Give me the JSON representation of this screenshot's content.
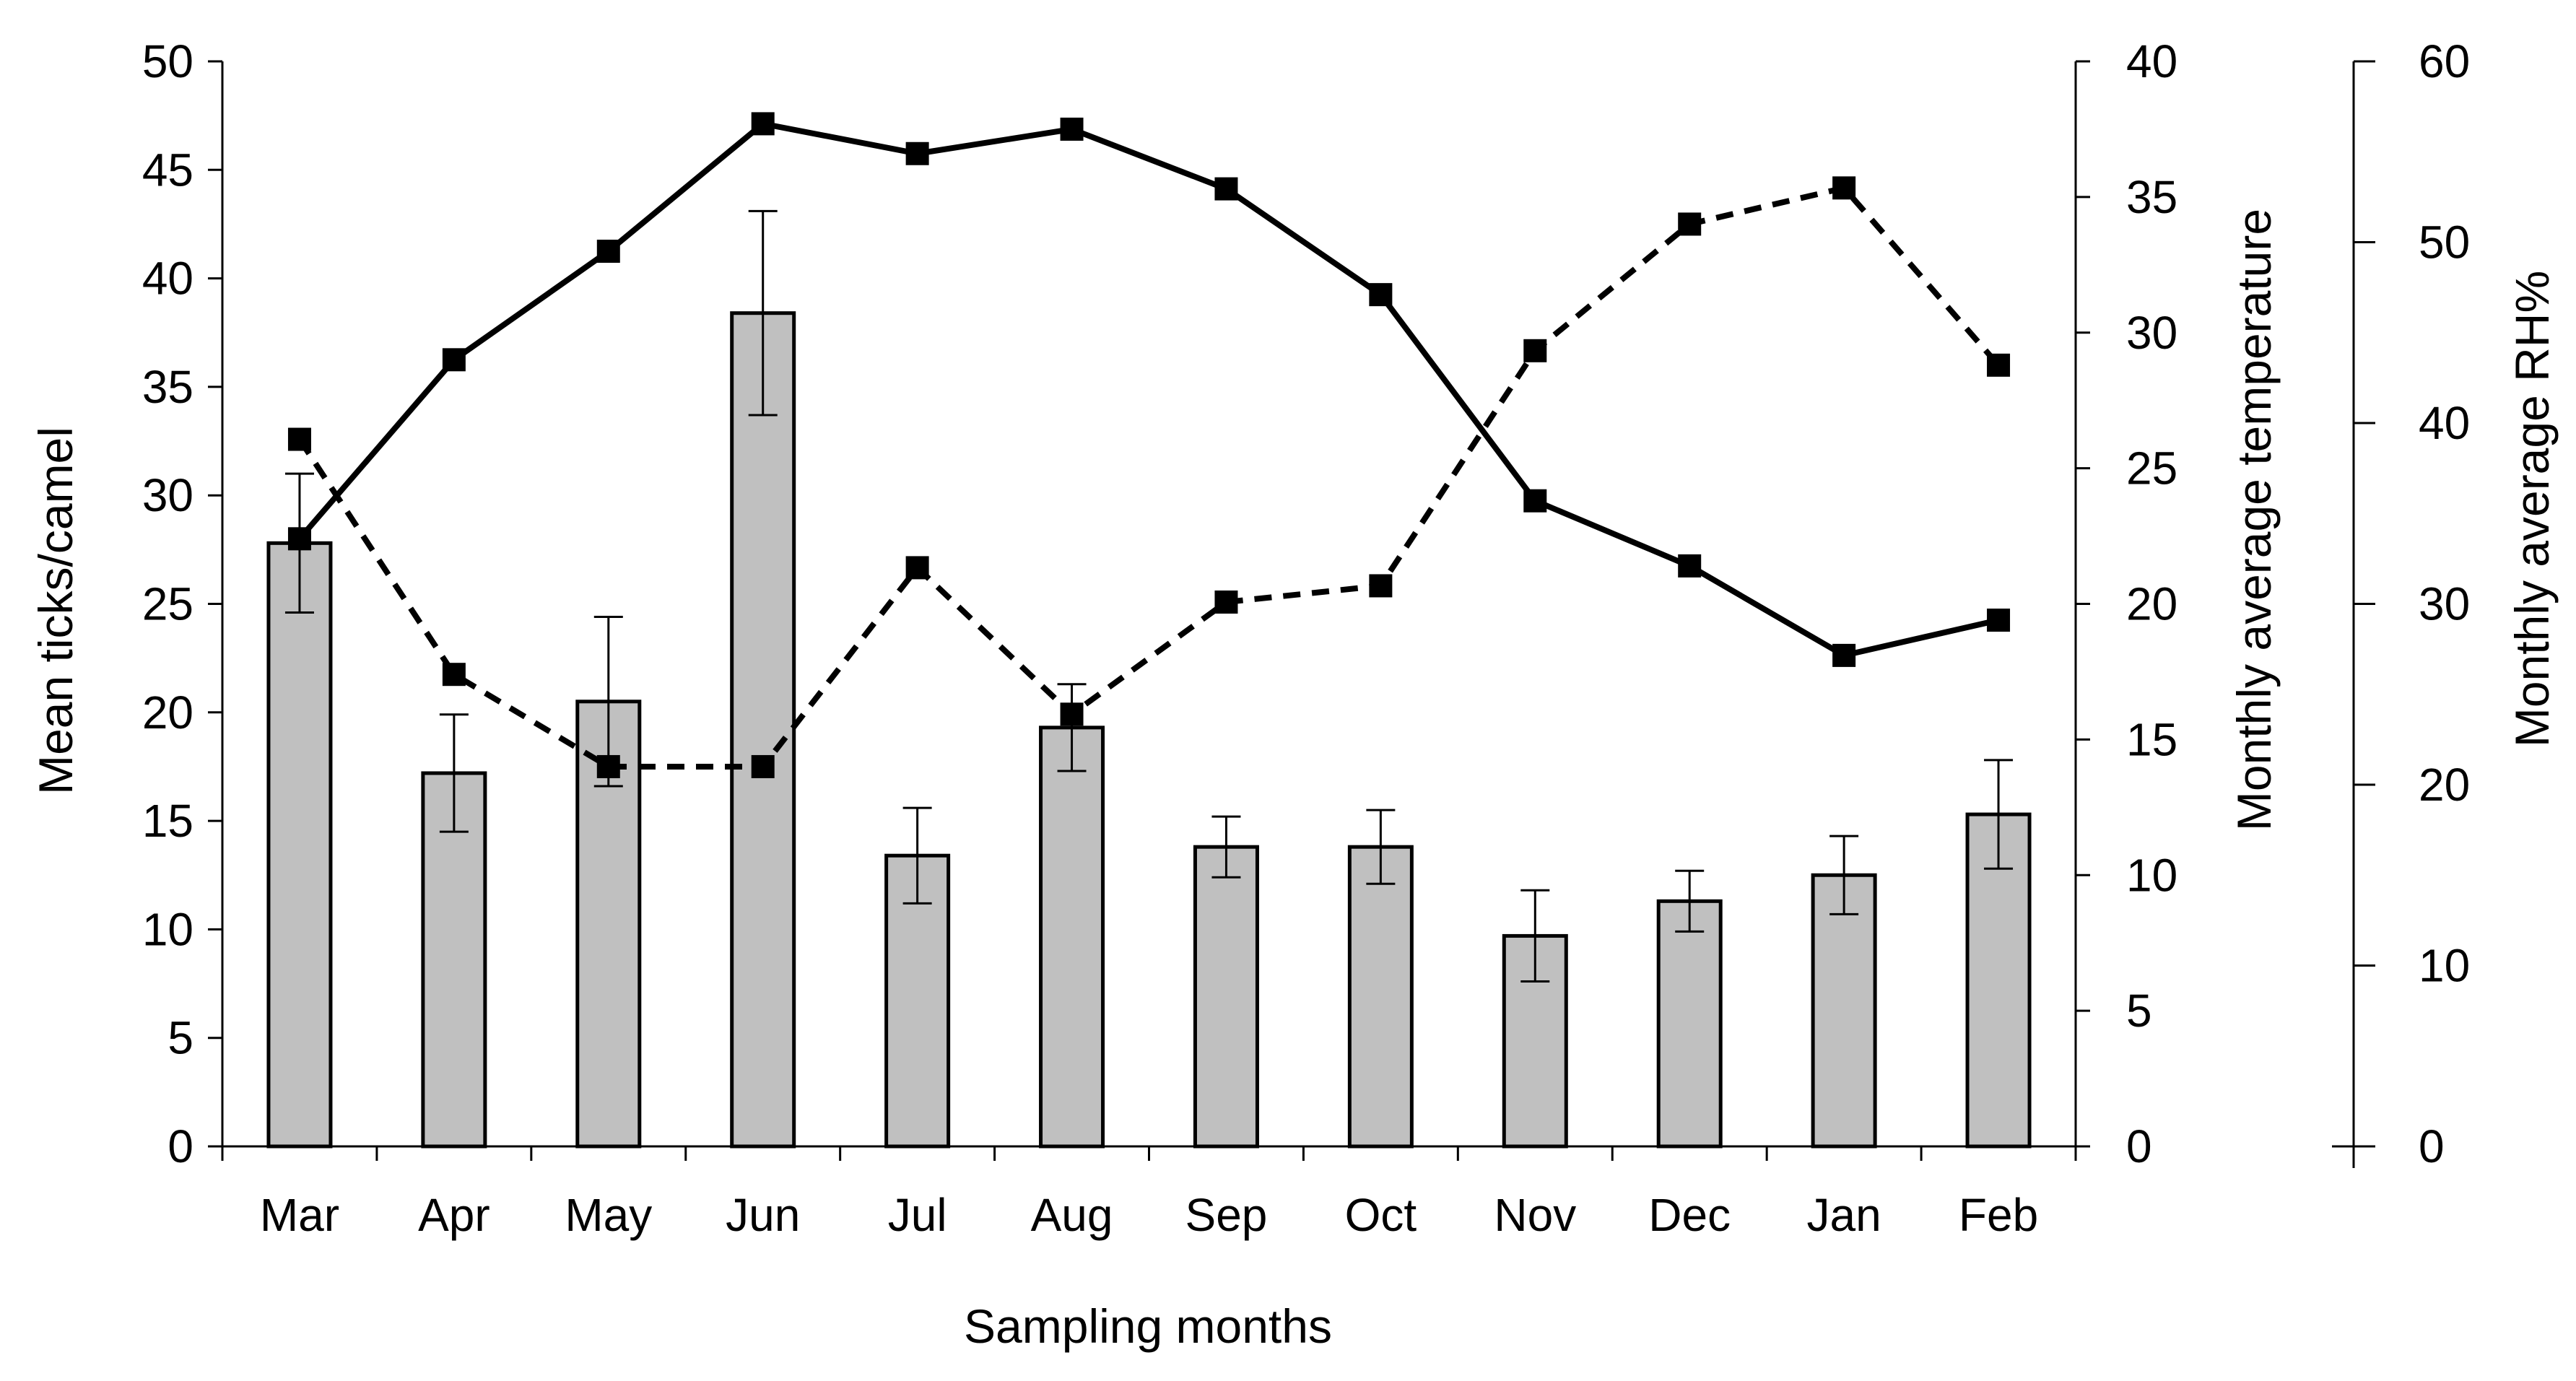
{
  "chart_data": {
    "type": "bar",
    "categories": [
      "Mar",
      "Apr",
      "May",
      "Jun",
      "Jul",
      "Aug",
      "Sep",
      "Oct",
      "Nov",
      "Dec",
      "Jan",
      "Feb"
    ],
    "xlabel": "Sampling months",
    "axes": {
      "left": {
        "label": "Mean ticks/camel",
        "ylim": [
          0,
          50
        ],
        "ticks": [
          0,
          5,
          10,
          15,
          20,
          25,
          30,
          35,
          40,
          45,
          50
        ]
      },
      "right1": {
        "label": "Monthly average temperature",
        "ylim": [
          0,
          40
        ],
        "ticks": [
          0,
          5,
          10,
          15,
          20,
          25,
          30,
          35,
          40
        ]
      },
      "right2": {
        "label": "Monthly average RH%",
        "ylim": [
          0,
          60
        ],
        "ticks": [
          0,
          10,
          20,
          30,
          40,
          50,
          60
        ]
      }
    },
    "series": [
      {
        "kind": "bar",
        "axis": "left",
        "color": "#c0c0c0",
        "values": [
          27.8,
          17.2,
          20.5,
          38.4,
          13.4,
          19.3,
          13.8,
          13.8,
          9.7,
          11.3,
          12.5,
          15.3
        ],
        "error": [
          3.2,
          2.7,
          3.9,
          4.7,
          2.2,
          2.0,
          1.4,
          1.7,
          2.1,
          1.4,
          1.8,
          2.5
        ]
      },
      {
        "kind": "line",
        "axis": "right1",
        "style": "solid",
        "color": "#000000",
        "values": [
          22.4,
          29.0,
          33.0,
          37.7,
          36.6,
          37.5,
          35.3,
          31.4,
          23.8,
          21.4,
          18.1,
          19.4
        ]
      },
      {
        "kind": "line",
        "axis": "right2",
        "style": "dashed",
        "color": "#000000",
        "values": [
          39.1,
          26.1,
          21.0,
          21.0,
          32.0,
          23.9,
          30.1,
          31.0,
          44.0,
          51.0,
          53.0,
          43.2
        ]
      }
    ]
  }
}
